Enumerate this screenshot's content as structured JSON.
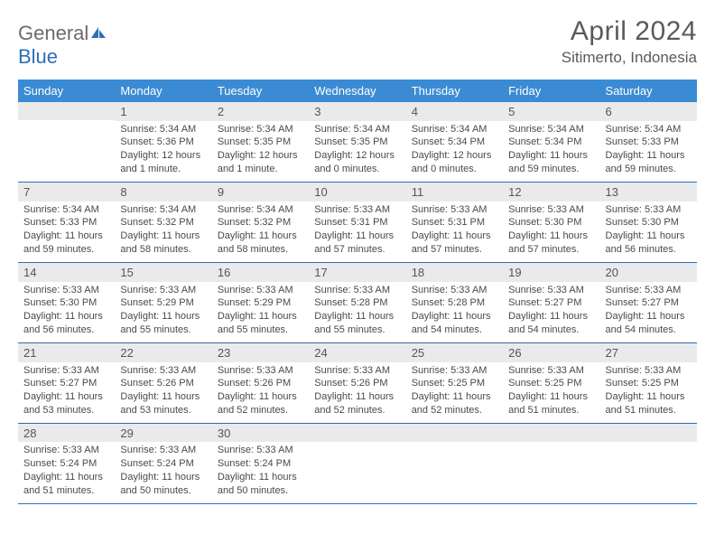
{
  "brand": {
    "name_gray": "General",
    "name_blue": "Blue"
  },
  "header": {
    "title": "April 2024",
    "location": "Sitimerto, Indonesia"
  },
  "weekdays": [
    "Sunday",
    "Monday",
    "Tuesday",
    "Wednesday",
    "Thursday",
    "Friday",
    "Saturday"
  ],
  "colors": {
    "header_bg": "#3b8bd4",
    "header_text": "#ffffff",
    "daynum_bg": "#eaeaea",
    "row_border": "#2d6fb8",
    "text": "#4a4a4a"
  },
  "calendar": {
    "start_weekday": 1,
    "days": [
      {
        "n": 1,
        "sunrise": "5:34 AM",
        "sunset": "5:36 PM",
        "daylight": "12 hours and 1 minute."
      },
      {
        "n": 2,
        "sunrise": "5:34 AM",
        "sunset": "5:35 PM",
        "daylight": "12 hours and 1 minute."
      },
      {
        "n": 3,
        "sunrise": "5:34 AM",
        "sunset": "5:35 PM",
        "daylight": "12 hours and 0 minutes."
      },
      {
        "n": 4,
        "sunrise": "5:34 AM",
        "sunset": "5:34 PM",
        "daylight": "12 hours and 0 minutes."
      },
      {
        "n": 5,
        "sunrise": "5:34 AM",
        "sunset": "5:34 PM",
        "daylight": "11 hours and 59 minutes."
      },
      {
        "n": 6,
        "sunrise": "5:34 AM",
        "sunset": "5:33 PM",
        "daylight": "11 hours and 59 minutes."
      },
      {
        "n": 7,
        "sunrise": "5:34 AM",
        "sunset": "5:33 PM",
        "daylight": "11 hours and 59 minutes."
      },
      {
        "n": 8,
        "sunrise": "5:34 AM",
        "sunset": "5:32 PM",
        "daylight": "11 hours and 58 minutes."
      },
      {
        "n": 9,
        "sunrise": "5:34 AM",
        "sunset": "5:32 PM",
        "daylight": "11 hours and 58 minutes."
      },
      {
        "n": 10,
        "sunrise": "5:33 AM",
        "sunset": "5:31 PM",
        "daylight": "11 hours and 57 minutes."
      },
      {
        "n": 11,
        "sunrise": "5:33 AM",
        "sunset": "5:31 PM",
        "daylight": "11 hours and 57 minutes."
      },
      {
        "n": 12,
        "sunrise": "5:33 AM",
        "sunset": "5:30 PM",
        "daylight": "11 hours and 57 minutes."
      },
      {
        "n": 13,
        "sunrise": "5:33 AM",
        "sunset": "5:30 PM",
        "daylight": "11 hours and 56 minutes."
      },
      {
        "n": 14,
        "sunrise": "5:33 AM",
        "sunset": "5:30 PM",
        "daylight": "11 hours and 56 minutes."
      },
      {
        "n": 15,
        "sunrise": "5:33 AM",
        "sunset": "5:29 PM",
        "daylight": "11 hours and 55 minutes."
      },
      {
        "n": 16,
        "sunrise": "5:33 AM",
        "sunset": "5:29 PM",
        "daylight": "11 hours and 55 minutes."
      },
      {
        "n": 17,
        "sunrise": "5:33 AM",
        "sunset": "5:28 PM",
        "daylight": "11 hours and 55 minutes."
      },
      {
        "n": 18,
        "sunrise": "5:33 AM",
        "sunset": "5:28 PM",
        "daylight": "11 hours and 54 minutes."
      },
      {
        "n": 19,
        "sunrise": "5:33 AM",
        "sunset": "5:27 PM",
        "daylight": "11 hours and 54 minutes."
      },
      {
        "n": 20,
        "sunrise": "5:33 AM",
        "sunset": "5:27 PM",
        "daylight": "11 hours and 54 minutes."
      },
      {
        "n": 21,
        "sunrise": "5:33 AM",
        "sunset": "5:27 PM",
        "daylight": "11 hours and 53 minutes."
      },
      {
        "n": 22,
        "sunrise": "5:33 AM",
        "sunset": "5:26 PM",
        "daylight": "11 hours and 53 minutes."
      },
      {
        "n": 23,
        "sunrise": "5:33 AM",
        "sunset": "5:26 PM",
        "daylight": "11 hours and 52 minutes."
      },
      {
        "n": 24,
        "sunrise": "5:33 AM",
        "sunset": "5:26 PM",
        "daylight": "11 hours and 52 minutes."
      },
      {
        "n": 25,
        "sunrise": "5:33 AM",
        "sunset": "5:25 PM",
        "daylight": "11 hours and 52 minutes."
      },
      {
        "n": 26,
        "sunrise": "5:33 AM",
        "sunset": "5:25 PM",
        "daylight": "11 hours and 51 minutes."
      },
      {
        "n": 27,
        "sunrise": "5:33 AM",
        "sunset": "5:25 PM",
        "daylight": "11 hours and 51 minutes."
      },
      {
        "n": 28,
        "sunrise": "5:33 AM",
        "sunset": "5:24 PM",
        "daylight": "11 hours and 51 minutes."
      },
      {
        "n": 29,
        "sunrise": "5:33 AM",
        "sunset": "5:24 PM",
        "daylight": "11 hours and 50 minutes."
      },
      {
        "n": 30,
        "sunrise": "5:33 AM",
        "sunset": "5:24 PM",
        "daylight": "11 hours and 50 minutes."
      }
    ]
  },
  "labels": {
    "sunrise": "Sunrise:",
    "sunset": "Sunset:",
    "daylight": "Daylight:"
  }
}
